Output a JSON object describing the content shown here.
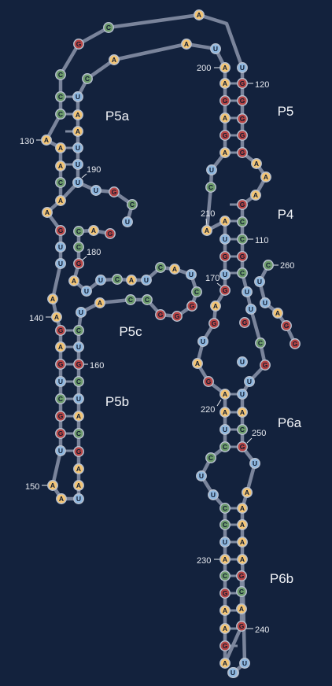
{
  "colors": {
    "background": "#13223d",
    "A": "#f3c576",
    "C": "#6d9b6c",
    "G": "#b84545",
    "U": "#8eb7df",
    "backbone": "#7f8aa0"
  },
  "helix_labels": [
    "P5a",
    "P5",
    "P4",
    "P5c",
    "P5b",
    "P6a",
    "P6b"
  ],
  "strand_left": [
    "A",
    "C",
    "G",
    "C",
    "C",
    "C",
    "A",
    "A",
    "A",
    "C",
    "A",
    "A",
    "G",
    "U",
    "U",
    "A",
    "A",
    "G",
    "A",
    "G",
    "U",
    "C",
    "G",
    "G",
    "U",
    "A",
    "A",
    "U",
    "A",
    "A",
    "G",
    "C",
    "A",
    "U",
    "C",
    "G",
    "U",
    "C",
    "U",
    "A",
    "C",
    "C",
    "G",
    "G",
    "G",
    "C",
    "U",
    "A",
    "C",
    "U",
    "A",
    "C",
    "U",
    "U",
    "A",
    "G",
    "C",
    "C",
    "A",
    "G"
  ],
  "strand_right": [
    "U",
    "C",
    "G",
    "U",
    "U",
    "U",
    "U",
    "A",
    "A",
    "U",
    "C",
    "A",
    "A",
    "U",
    "A",
    "A",
    "G",
    "A",
    "G",
    "A",
    "U",
    "C",
    "A",
    "A",
    "U",
    "G",
    "U",
    "G",
    "A",
    "G",
    "U",
    "A",
    "G",
    "A",
    "A",
    "U",
    "C",
    "C",
    "U",
    "U",
    "C",
    "C",
    "U",
    "A",
    "C",
    "G",
    "A",
    "A",
    "G",
    "A",
    "G",
    "A",
    "C",
    "G"
  ],
  "index_labels": [
    "120",
    "130",
    "140",
    "150",
    "160",
    "170",
    "180",
    "190",
    "200",
    "210",
    "110",
    "220",
    "230",
    "240",
    "250",
    "260"
  ]
}
